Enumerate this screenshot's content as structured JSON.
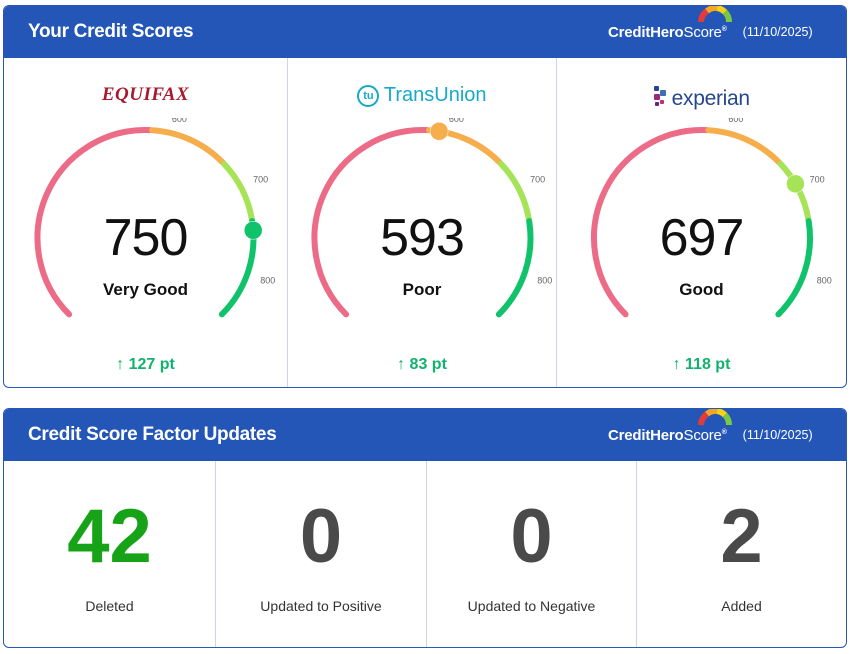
{
  "scores_card": {
    "title": "Your Credit Scores",
    "brand": {
      "bold": "CreditHero",
      "light": "Score",
      "tm": "®"
    },
    "date": "(11/10/2025)"
  },
  "bureaus": [
    {
      "logo_text": "EQUIFAX",
      "score": "750",
      "rating": "Very Good",
      "change": "127 pt",
      "change_arrow": "↑",
      "score_value": 750
    },
    {
      "logo_text": "TransUnion",
      "logo_mark": "tu",
      "score": "593",
      "rating": "Poor",
      "change": "83 pt",
      "change_arrow": "↑",
      "score_value": 593
    },
    {
      "logo_text": "experian",
      "score": "697",
      "rating": "Good",
      "change": "118 pt",
      "change_arrow": "↑",
      "score_value": 697
    }
  ],
  "gauge_ticks": [
    "600",
    "700",
    "800"
  ],
  "gauge_colors": {
    "poor": "#ec6b86",
    "fair": "#f6ad4b",
    "good": "#a6e357",
    "excellent": "#10c36b"
  },
  "factors_card": {
    "title": "Credit Score Factor Updates",
    "brand": {
      "bold": "CreditHero",
      "light": "Score",
      "tm": "®"
    },
    "date": "(11/10/2025)"
  },
  "factors": [
    {
      "value": "42",
      "label": "Deleted"
    },
    {
      "value": "0",
      "label": "Updated to Positive"
    },
    {
      "value": "0",
      "label": "Updated to Negative"
    },
    {
      "value": "2",
      "label": "Added"
    }
  ]
}
